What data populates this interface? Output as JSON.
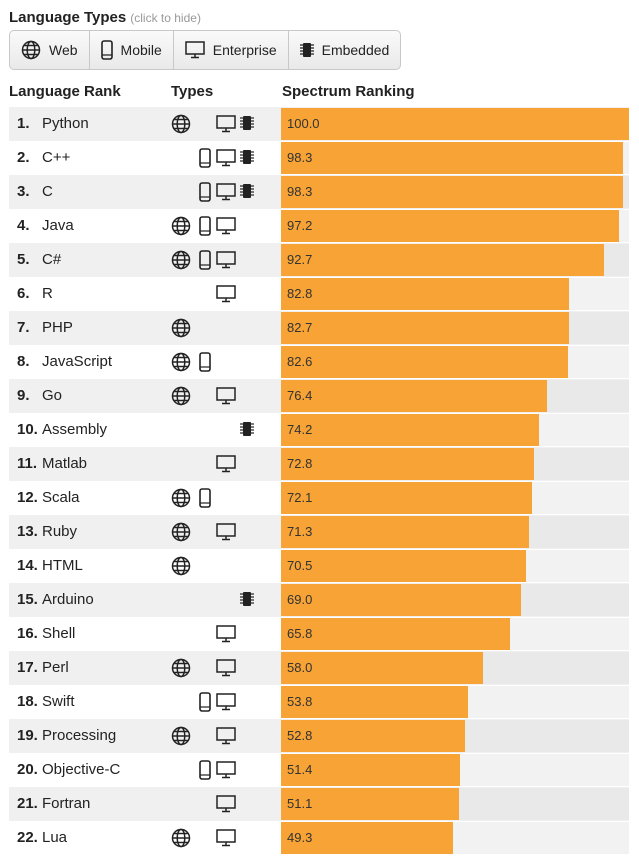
{
  "header": {
    "title": "Language Types",
    "hint": "(click to hide)"
  },
  "filters": [
    {
      "label": "Web",
      "icon": "globe-icon"
    },
    {
      "label": "Mobile",
      "icon": "phone-icon"
    },
    {
      "label": "Enterprise",
      "icon": "monitor-icon"
    },
    {
      "label": "Embedded",
      "icon": "chip-icon"
    }
  ],
  "columns": {
    "rank": "Language Rank",
    "types": "Types",
    "ranking": "Spectrum Ranking"
  },
  "colors": {
    "bar": "#f7a336"
  },
  "chart_data": {
    "type": "bar",
    "orientation": "horizontal",
    "xlim": [
      0,
      100
    ],
    "categories": [
      "Python",
      "C++",
      "C",
      "Java",
      "C#",
      "R",
      "PHP",
      "JavaScript",
      "Go",
      "Assembly",
      "Matlab",
      "Scala",
      "Ruby",
      "HTML",
      "Arduino",
      "Shell",
      "Perl",
      "Swift",
      "Processing",
      "Objective-C",
      "Fortran",
      "Lua"
    ],
    "values": [
      100.0,
      98.3,
      98.3,
      97.2,
      92.7,
      82.8,
      82.7,
      82.6,
      76.4,
      74.2,
      72.8,
      72.1,
      71.3,
      70.5,
      69.0,
      65.8,
      58.0,
      53.8,
      52.8,
      51.4,
      51.1,
      49.3
    ],
    "value_labels": [
      "100.0",
      "98.3",
      "98.3",
      "97.2",
      "92.7",
      "82.8",
      "82.7",
      "82.6",
      "76.4",
      "74.2",
      "72.8",
      "72.1",
      "71.3",
      "70.5",
      "69.0",
      "65.8",
      "58.0",
      "53.8",
      "52.8",
      "51.4",
      "51.1",
      "49.3"
    ],
    "ranks": [
      "1.",
      "2.",
      "3.",
      "4.",
      "5.",
      "6.",
      "7.",
      "8.",
      "9.",
      "10.",
      "11.",
      "12.",
      "13.",
      "14.",
      "15.",
      "16.",
      "17.",
      "18.",
      "19.",
      "20.",
      "21.",
      "22."
    ],
    "types": [
      [
        "web",
        "enterprise",
        "embedded"
      ],
      [
        "mobile",
        "enterprise",
        "embedded"
      ],
      [
        "mobile",
        "enterprise",
        "embedded"
      ],
      [
        "web",
        "mobile",
        "enterprise"
      ],
      [
        "web",
        "mobile",
        "enterprise"
      ],
      [
        "enterprise"
      ],
      [
        "web"
      ],
      [
        "web",
        "mobile"
      ],
      [
        "web",
        "enterprise"
      ],
      [
        "embedded"
      ],
      [
        "enterprise"
      ],
      [
        "web",
        "mobile"
      ],
      [
        "web",
        "enterprise"
      ],
      [
        "web"
      ],
      [
        "embedded"
      ],
      [
        "enterprise"
      ],
      [
        "web",
        "enterprise"
      ],
      [
        "mobile",
        "enterprise"
      ],
      [
        "web",
        "enterprise"
      ],
      [
        "mobile",
        "enterprise"
      ],
      [
        "enterprise"
      ],
      [
        "web",
        "enterprise"
      ]
    ]
  }
}
